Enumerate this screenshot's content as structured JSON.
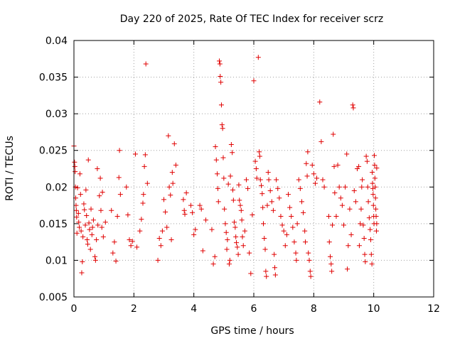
{
  "chart_data": {
    "type": "scatter",
    "title": "Day 220 of 2025, Rate Of TEC Index for receiver scrz",
    "xlabel": "GPS time / hours",
    "ylabel": "ROTI / TECUs",
    "xlim": [
      0,
      12
    ],
    "ylim": [
      0.005,
      0.04
    ],
    "x_ticks": [
      "0",
      "2",
      "4",
      "6",
      "8",
      "10",
      "12"
    ],
    "y_ticks": [
      "0.005",
      "0.01",
      "0.015",
      "0.02",
      "0.025",
      "0.03",
      "0.035",
      "0.04"
    ],
    "grid": true,
    "marker": "+",
    "color": "#e00000",
    "series": [
      {
        "points": [
          [
            0.0,
            0.0256
          ],
          [
            0.02,
            0.0234
          ],
          [
            0.03,
            0.0228
          ],
          [
            0.04,
            0.0221
          ],
          [
            0.05,
            0.02
          ],
          [
            0.06,
            0.0185
          ],
          [
            0.07,
            0.0175
          ],
          [
            0.08,
            0.0168
          ],
          [
            0.09,
            0.0159
          ],
          [
            0.1,
            0.0137
          ],
          [
            0.12,
            0.0199
          ],
          [
            0.15,
            0.0164
          ],
          [
            0.16,
            0.0152
          ],
          [
            0.18,
            0.0145
          ],
          [
            0.2,
            0.0218
          ],
          [
            0.22,
            0.019
          ],
          [
            0.24,
            0.014
          ],
          [
            0.26,
            0.0083
          ],
          [
            0.28,
            0.0098
          ],
          [
            0.3,
            0.0132
          ],
          [
            0.33,
            0.0177
          ],
          [
            0.35,
            0.0169
          ],
          [
            0.38,
            0.0148
          ],
          [
            0.4,
            0.0196
          ],
          [
            0.42,
            0.0161
          ],
          [
            0.44,
            0.0128
          ],
          [
            0.46,
            0.0122
          ],
          [
            0.48,
            0.0237
          ],
          [
            0.5,
            0.0151
          ],
          [
            0.52,
            0.0142
          ],
          [
            0.55,
            0.0115
          ],
          [
            0.57,
            0.017
          ],
          [
            0.6,
            0.0135
          ],
          [
            0.62,
            0.0145
          ],
          [
            0.65,
            0.0155
          ],
          [
            0.7,
            0.0105
          ],
          [
            0.72,
            0.01
          ],
          [
            0.75,
            0.0128
          ],
          [
            0.78,
            0.0225
          ],
          [
            0.8,
            0.0148
          ],
          [
            0.85,
            0.0188
          ],
          [
            0.88,
            0.0212
          ],
          [
            0.9,
            0.0168
          ],
          [
            0.93,
            0.0145
          ],
          [
            0.95,
            0.0193
          ],
          [
            0.98,
            0.0132
          ],
          [
            1.05,
            0.0152
          ],
          [
            1.25,
            0.0168
          ],
          [
            1.3,
            0.011
          ],
          [
            1.35,
            0.0125
          ],
          [
            1.4,
            0.0099
          ],
          [
            1.45,
            0.016
          ],
          [
            1.5,
            0.0213
          ],
          [
            1.52,
            0.025
          ],
          [
            1.55,
            0.019
          ],
          [
            1.75,
            0.02
          ],
          [
            1.8,
            0.0162
          ],
          [
            1.85,
            0.0128
          ],
          [
            1.9,
            0.012
          ],
          [
            1.95,
            0.0126
          ],
          [
            2.05,
            0.0245
          ],
          [
            2.1,
            0.0118
          ],
          [
            2.2,
            0.014
          ],
          [
            2.25,
            0.0156
          ],
          [
            2.3,
            0.0178
          ],
          [
            2.32,
            0.019
          ],
          [
            2.35,
            0.0228
          ],
          [
            2.38,
            0.0244
          ],
          [
            2.4,
            0.0368
          ],
          [
            2.45,
            0.0205
          ],
          [
            2.8,
            0.01
          ],
          [
            2.85,
            0.013
          ],
          [
            2.9,
            0.012
          ],
          [
            2.95,
            0.014
          ],
          [
            3.0,
            0.0183
          ],
          [
            3.05,
            0.0166
          ],
          [
            3.1,
            0.0145
          ],
          [
            3.15,
            0.027
          ],
          [
            3.18,
            0.02
          ],
          [
            3.22,
            0.0189
          ],
          [
            3.25,
            0.0128
          ],
          [
            3.28,
            0.022
          ],
          [
            3.3,
            0.0205
          ],
          [
            3.35,
            0.0259
          ],
          [
            3.4,
            0.023
          ],
          [
            3.65,
            0.0183
          ],
          [
            3.68,
            0.0168
          ],
          [
            3.7,
            0.0163
          ],
          [
            3.75,
            0.0192
          ],
          [
            3.9,
            0.0175
          ],
          [
            3.95,
            0.0165
          ],
          [
            4.0,
            0.0135
          ],
          [
            4.05,
            0.0142
          ],
          [
            4.2,
            0.0175
          ],
          [
            4.25,
            0.017
          ],
          [
            4.3,
            0.0113
          ],
          [
            4.4,
            0.0155
          ],
          [
            4.6,
            0.0142
          ],
          [
            4.65,
            0.0095
          ],
          [
            4.7,
            0.0105
          ],
          [
            4.72,
            0.0255
          ],
          [
            4.75,
            0.0237
          ],
          [
            4.78,
            0.0218
          ],
          [
            4.8,
            0.0198
          ],
          [
            4.82,
            0.018
          ],
          [
            4.85,
            0.0372
          ],
          [
            4.87,
            0.0368
          ],
          [
            4.88,
            0.0351
          ],
          [
            4.9,
            0.0343
          ],
          [
            4.92,
            0.0312
          ],
          [
            4.94,
            0.0285
          ],
          [
            4.96,
            0.028
          ],
          [
            4.98,
            0.024
          ],
          [
            5.0,
            0.0212
          ],
          [
            5.02,
            0.017
          ],
          [
            5.05,
            0.015
          ],
          [
            5.08,
            0.0138
          ],
          [
            5.1,
            0.0115
          ],
          [
            5.12,
            0.0128
          ],
          [
            5.15,
            0.0204
          ],
          [
            5.18,
            0.0095
          ],
          [
            5.2,
            0.01
          ],
          [
            5.22,
            0.0215
          ],
          [
            5.25,
            0.0258
          ],
          [
            5.28,
            0.0247
          ],
          [
            5.3,
            0.0196
          ],
          [
            5.32,
            0.0182
          ],
          [
            5.35,
            0.0152
          ],
          [
            5.38,
            0.0145
          ],
          [
            5.4,
            0.0132
          ],
          [
            5.42,
            0.0124
          ],
          [
            5.45,
            0.0118
          ],
          [
            5.48,
            0.0108
          ],
          [
            5.5,
            0.0203
          ],
          [
            5.52,
            0.0182
          ],
          [
            5.55,
            0.0175
          ],
          [
            5.58,
            0.0168
          ],
          [
            5.6,
            0.0155
          ],
          [
            5.62,
            0.0132
          ],
          [
            5.65,
            0.012
          ],
          [
            5.7,
            0.014
          ],
          [
            5.75,
            0.021
          ],
          [
            5.8,
            0.0198
          ],
          [
            5.85,
            0.011
          ],
          [
            5.9,
            0.0082
          ],
          [
            5.95,
            0.0162
          ],
          [
            6.0,
            0.0345
          ],
          [
            6.05,
            0.0235
          ],
          [
            6.08,
            0.0225
          ],
          [
            6.1,
            0.0212
          ],
          [
            6.15,
            0.0377
          ],
          [
            6.18,
            0.0248
          ],
          [
            6.2,
            0.0242
          ],
          [
            6.22,
            0.021
          ],
          [
            6.25,
            0.0202
          ],
          [
            6.28,
            0.0191
          ],
          [
            6.3,
            0.0172
          ],
          [
            6.32,
            0.015
          ],
          [
            6.35,
            0.013
          ],
          [
            6.38,
            0.0115
          ],
          [
            6.4,
            0.0085
          ],
          [
            6.42,
            0.0078
          ],
          [
            6.45,
            0.0175
          ],
          [
            6.48,
            0.022
          ],
          [
            6.5,
            0.021
          ],
          [
            6.55,
            0.0195
          ],
          [
            6.6,
            0.018
          ],
          [
            6.65,
            0.0168
          ],
          [
            6.68,
            0.0108
          ],
          [
            6.7,
            0.009
          ],
          [
            6.72,
            0.008
          ],
          [
            6.75,
            0.021
          ],
          [
            6.8,
            0.0198
          ],
          [
            6.85,
            0.0185
          ],
          [
            6.9,
            0.016
          ],
          [
            6.95,
            0.0148
          ],
          [
            7.0,
            0.014
          ],
          [
            7.05,
            0.012
          ],
          [
            7.1,
            0.0135
          ],
          [
            7.15,
            0.019
          ],
          [
            7.2,
            0.0172
          ],
          [
            7.25,
            0.016
          ],
          [
            7.3,
            0.0145
          ],
          [
            7.35,
            0.0125
          ],
          [
            7.4,
            0.011
          ],
          [
            7.42,
            0.01
          ],
          [
            7.45,
            0.015
          ],
          [
            7.5,
            0.021
          ],
          [
            7.55,
            0.0198
          ],
          [
            7.6,
            0.018
          ],
          [
            7.65,
            0.0165
          ],
          [
            7.7,
            0.014
          ],
          [
            7.72,
            0.0125
          ],
          [
            7.75,
            0.0232
          ],
          [
            7.78,
            0.0215
          ],
          [
            7.8,
            0.0248
          ],
          [
            7.82,
            0.011
          ],
          [
            7.85,
            0.01
          ],
          [
            7.88,
            0.0085
          ],
          [
            7.9,
            0.0078
          ],
          [
            7.95,
            0.023
          ],
          [
            8.0,
            0.0218
          ],
          [
            8.05,
            0.0205
          ],
          [
            8.1,
            0.0212
          ],
          [
            8.2,
            0.0316
          ],
          [
            8.25,
            0.0262
          ],
          [
            8.3,
            0.021
          ],
          [
            8.35,
            0.02
          ],
          [
            8.5,
            0.016
          ],
          [
            8.52,
            0.0125
          ],
          [
            8.55,
            0.0105
          ],
          [
            8.58,
            0.0095
          ],
          [
            8.6,
            0.0085
          ],
          [
            8.62,
            0.0148
          ],
          [
            8.65,
            0.0272
          ],
          [
            8.68,
            0.0228
          ],
          [
            8.7,
            0.0192
          ],
          [
            8.75,
            0.016
          ],
          [
            8.8,
            0.023
          ],
          [
            8.85,
            0.02
          ],
          [
            8.9,
            0.0185
          ],
          [
            8.95,
            0.0175
          ],
          [
            9.0,
            0.0148
          ],
          [
            9.05,
            0.02
          ],
          [
            9.1,
            0.0245
          ],
          [
            9.12,
            0.0088
          ],
          [
            9.15,
            0.012
          ],
          [
            9.2,
            0.017
          ],
          [
            9.25,
            0.0135
          ],
          [
            9.3,
            0.0312
          ],
          [
            9.32,
            0.0308
          ],
          [
            9.35,
            0.0195
          ],
          [
            9.4,
            0.018
          ],
          [
            9.45,
            0.0225
          ],
          [
            9.5,
            0.0228
          ],
          [
            9.52,
            0.012
          ],
          [
            9.55,
            0.015
          ],
          [
            9.58,
            0.017
          ],
          [
            9.6,
            0.02
          ],
          [
            9.62,
            0.021
          ],
          [
            9.65,
            0.0148
          ],
          [
            9.68,
            0.013
          ],
          [
            9.7,
            0.0108
          ],
          [
            9.72,
            0.0098
          ],
          [
            9.75,
            0.0242
          ],
          [
            9.78,
            0.0235
          ],
          [
            9.8,
            0.02
          ],
          [
            9.82,
            0.018
          ],
          [
            9.85,
            0.0158
          ],
          [
            9.88,
            0.0142
          ],
          [
            9.9,
            0.0128
          ],
          [
            9.92,
            0.0108
          ],
          [
            9.94,
            0.0095
          ],
          [
            9.95,
            0.022
          ],
          [
            9.96,
            0.0205
          ],
          [
            9.97,
            0.0198
          ],
          [
            9.98,
            0.019
          ],
          [
            9.99,
            0.0175
          ],
          [
            10.0,
            0.016
          ],
          [
            10.01,
            0.015
          ],
          [
            10.02,
            0.0243
          ],
          [
            10.03,
            0.023
          ],
          [
            10.04,
            0.0212
          ],
          [
            10.05,
            0.02
          ],
          [
            10.06,
            0.0185
          ],
          [
            10.07,
            0.017
          ],
          [
            10.08,
            0.016
          ],
          [
            10.09,
            0.014
          ],
          [
            10.1,
            0.0226
          ],
          [
            10.1,
            0.015
          ]
        ]
      }
    ]
  }
}
